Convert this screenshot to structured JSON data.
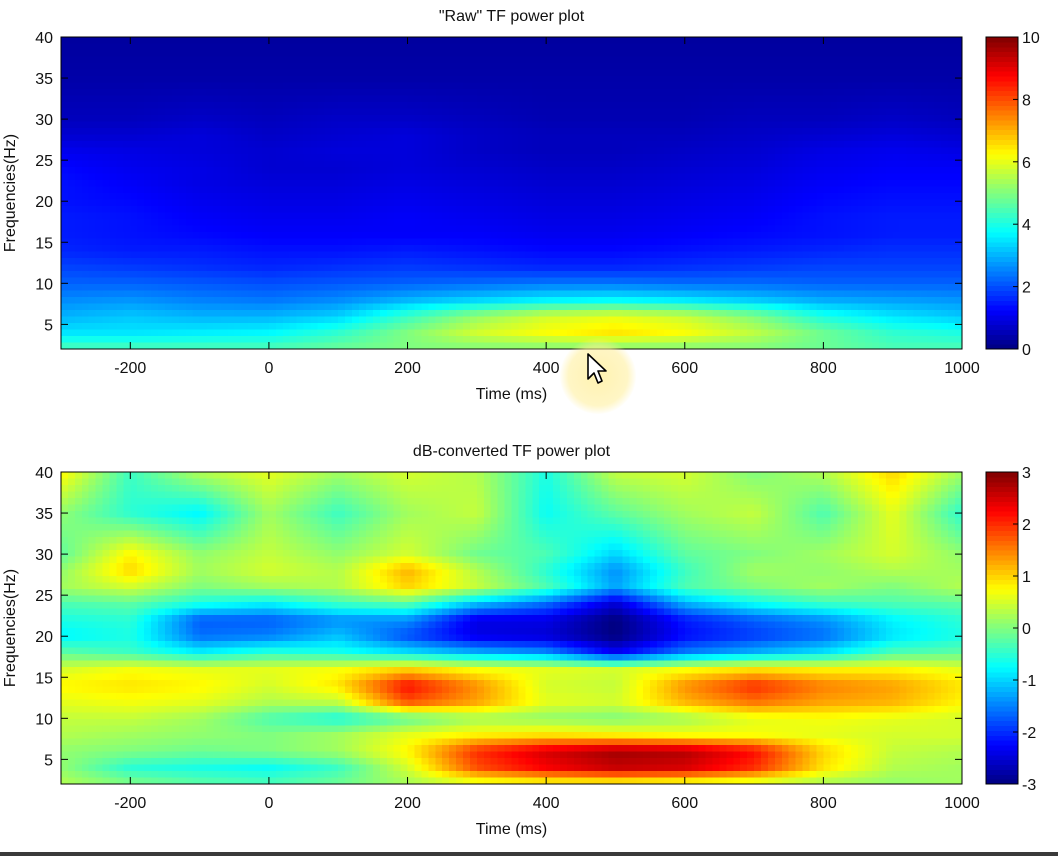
{
  "chart_data": [
    {
      "type": "heatmap",
      "title": "\"Raw\" TF power plot",
      "xlabel": "Time (ms)",
      "ylabel": "Frequencies(Hz)",
      "xlim": [
        -300,
        1000
      ],
      "ylim": [
        2,
        40
      ],
      "xticks": [
        -200,
        0,
        200,
        400,
        600,
        800,
        1000
      ],
      "yticks": [
        5,
        10,
        15,
        20,
        25,
        30,
        35,
        40
      ],
      "colorbar": {
        "min": 0,
        "max": 10,
        "ticks": [
          0,
          2,
          4,
          6,
          8,
          10
        ]
      },
      "colormap": "jet",
      "grid": false,
      "x": [
        -300,
        -200,
        -100,
        0,
        100,
        200,
        300,
        400,
        500,
        600,
        700,
        800,
        900,
        1000
      ],
      "y": [
        2,
        4,
        6,
        8,
        10,
        12,
        14,
        16,
        18,
        20,
        22,
        24,
        26,
        28,
        30,
        35,
        40
      ],
      "z": [
        [
          4.5,
          4.5,
          4.5,
          4.5,
          4.8,
          5.0,
          5.0,
          5.0,
          5.0,
          5.0,
          5.0,
          4.8,
          4.5,
          4.5
        ],
        [
          3.5,
          3.5,
          3.6,
          3.7,
          4.2,
          5.0,
          5.8,
          6.2,
          6.5,
          6.2,
          5.6,
          4.8,
          4.2,
          4.0
        ],
        [
          3.0,
          3.2,
          3.0,
          3.0,
          3.3,
          4.3,
          5.2,
          5.8,
          6.0,
          5.7,
          5.0,
          4.0,
          3.5,
          3.2
        ],
        [
          2.6,
          2.7,
          2.5,
          2.4,
          2.6,
          3.0,
          3.3,
          3.6,
          3.7,
          3.5,
          3.2,
          2.9,
          2.8,
          2.7
        ],
        [
          2.2,
          2.2,
          2.1,
          2.0,
          2.1,
          2.2,
          2.3,
          2.4,
          2.4,
          2.3,
          2.3,
          2.2,
          2.2,
          2.2
        ],
        [
          1.9,
          1.8,
          1.7,
          1.6,
          1.7,
          1.8,
          1.7,
          1.6,
          1.6,
          1.7,
          1.8,
          1.9,
          1.9,
          1.9
        ],
        [
          1.6,
          1.5,
          1.5,
          1.4,
          1.4,
          1.5,
          1.4,
          1.3,
          1.3,
          1.4,
          1.5,
          1.6,
          1.7,
          1.7
        ],
        [
          1.5,
          1.4,
          1.3,
          1.2,
          1.2,
          1.2,
          1.2,
          1.1,
          1.1,
          1.2,
          1.3,
          1.4,
          1.5,
          1.5
        ],
        [
          1.5,
          1.4,
          1.2,
          1.1,
          1.1,
          1.2,
          1.1,
          1.0,
          1.0,
          1.1,
          1.2,
          1.4,
          1.5,
          1.5
        ],
        [
          1.4,
          1.3,
          1.1,
          1.0,
          1.0,
          1.1,
          1.0,
          0.9,
          0.9,
          1.0,
          1.1,
          1.3,
          1.4,
          1.4
        ],
        [
          1.4,
          1.2,
          1.0,
          0.9,
          0.9,
          1.0,
          0.9,
          0.8,
          0.8,
          0.9,
          1.0,
          1.2,
          1.3,
          1.3
        ],
        [
          1.3,
          1.1,
          1.0,
          0.8,
          0.8,
          0.9,
          0.8,
          0.7,
          0.7,
          0.8,
          0.9,
          1.1,
          1.2,
          1.2
        ],
        [
          1.1,
          1.0,
          0.9,
          0.8,
          0.9,
          0.9,
          0.7,
          0.6,
          0.6,
          0.7,
          0.8,
          1.0,
          1.1,
          1.0
        ],
        [
          0.8,
          0.8,
          0.9,
          0.7,
          0.8,
          0.9,
          0.7,
          0.6,
          0.6,
          0.6,
          0.7,
          0.8,
          0.9,
          0.8
        ],
        [
          0.6,
          0.6,
          0.7,
          0.6,
          0.7,
          0.7,
          0.6,
          0.5,
          0.5,
          0.5,
          0.6,
          0.6,
          0.7,
          0.6
        ],
        [
          0.4,
          0.4,
          0.4,
          0.4,
          0.4,
          0.4,
          0.4,
          0.4,
          0.4,
          0.4,
          0.4,
          0.4,
          0.4,
          0.4
        ],
        [
          0.3,
          0.3,
          0.3,
          0.3,
          0.3,
          0.3,
          0.3,
          0.3,
          0.3,
          0.3,
          0.3,
          0.3,
          0.3,
          0.3
        ]
      ]
    },
    {
      "type": "heatmap",
      "title": "dB-converted TF power plot",
      "xlabel": "Time (ms)",
      "ylabel": "Frequencies(Hz)",
      "xlim": [
        -300,
        1000
      ],
      "ylim": [
        2,
        40
      ],
      "xticks": [
        -200,
        0,
        200,
        400,
        600,
        800,
        1000
      ],
      "yticks": [
        5,
        10,
        15,
        20,
        25,
        30,
        35,
        40
      ],
      "colorbar": {
        "min": -3,
        "max": 3,
        "ticks": [
          -3,
          -2,
          -1,
          0,
          1,
          2,
          3
        ]
      },
      "colormap": "jet",
      "grid": false,
      "x": [
        -300,
        -200,
        -100,
        0,
        100,
        200,
        300,
        400,
        500,
        600,
        700,
        800,
        900,
        1000
      ],
      "y": [
        2,
        4,
        6,
        8,
        10,
        12,
        14,
        16,
        18,
        20,
        22,
        24,
        26,
        28,
        30,
        35,
        40
      ],
      "z": [
        [
          0.3,
          0.0,
          -0.2,
          -0.3,
          -0.1,
          0.2,
          0.5,
          0.6,
          0.6,
          0.5,
          0.4,
          0.2,
          0.1,
          0.2
        ],
        [
          0.1,
          -0.5,
          -0.6,
          -0.7,
          -0.4,
          0.5,
          1.8,
          2.3,
          2.6,
          2.5,
          2.0,
          0.9,
          0.3,
          0.2
        ],
        [
          0.1,
          0.0,
          -0.1,
          0.0,
          0.2,
          0.8,
          2.0,
          2.5,
          2.8,
          2.7,
          2.2,
          1.0,
          0.4,
          0.3
        ],
        [
          0.3,
          0.2,
          0.1,
          0.0,
          0.2,
          0.6,
          0.8,
          0.9,
          0.8,
          0.7,
          0.7,
          0.6,
          0.5,
          0.5
        ],
        [
          0.4,
          0.4,
          0.2,
          -0.3,
          -0.6,
          -0.2,
          0.2,
          0.1,
          0.0,
          0.2,
          0.6,
          0.7,
          0.6,
          0.5
        ],
        [
          0.6,
          0.7,
          0.6,
          0.3,
          0.4,
          1.8,
          1.3,
          0.6,
          0.5,
          1.2,
          1.6,
          1.3,
          1.2,
          0.8
        ],
        [
          0.8,
          0.9,
          0.8,
          0.5,
          0.9,
          2.2,
          1.4,
          0.5,
          0.4,
          1.4,
          2.0,
          1.5,
          1.3,
          0.9
        ],
        [
          0.5,
          0.7,
          0.6,
          0.6,
          0.7,
          1.0,
          0.7,
          0.6,
          0.5,
          0.7,
          0.9,
          0.8,
          0.8,
          0.6
        ],
        [
          -0.2,
          -0.4,
          -0.8,
          -0.5,
          -0.6,
          -0.9,
          -1.2,
          -1.4,
          -2.3,
          -1.5,
          -1.2,
          -0.9,
          -0.3,
          -0.2
        ],
        [
          -0.8,
          -0.6,
          -1.6,
          -1.5,
          -1.1,
          -1.8,
          -2.4,
          -2.5,
          -3.0,
          -2.2,
          -1.9,
          -1.6,
          -0.9,
          -0.6
        ],
        [
          -0.6,
          -0.5,
          -1.7,
          -1.7,
          -1.4,
          -1.4,
          -2.4,
          -2.4,
          -3.0,
          -2.1,
          -1.7,
          -1.4,
          -0.8,
          -0.5
        ],
        [
          -0.3,
          -0.2,
          -0.6,
          -0.8,
          -0.4,
          -0.2,
          -1.1,
          -1.6,
          -2.5,
          -1.2,
          -0.7,
          -0.4,
          -0.3,
          -0.2
        ],
        [
          0.2,
          0.5,
          0.0,
          0.2,
          0.3,
          1.0,
          0.4,
          -0.3,
          -1.3,
          -0.3,
          0.0,
          0.2,
          0.0,
          0.3
        ],
        [
          0.1,
          1.0,
          0.2,
          0.5,
          0.3,
          1.2,
          0.3,
          -0.5,
          -1.4,
          -0.4,
          0.2,
          0.1,
          0.3,
          0.2
        ],
        [
          -0.2,
          0.8,
          0.1,
          0.4,
          0.1,
          0.5,
          -0.1,
          -0.3,
          -1.0,
          -0.2,
          0.0,
          0.2,
          0.5,
          0.1
        ],
        [
          0.1,
          -0.5,
          -0.8,
          0.2,
          -0.4,
          0.2,
          0.4,
          -0.7,
          -0.2,
          0.2,
          0.4,
          -0.3,
          0.6,
          -0.5
        ],
        [
          0.8,
          -0.4,
          0.3,
          0.6,
          0.2,
          0.5,
          0.3,
          -0.6,
          0.4,
          0.5,
          0.0,
          0.3,
          1.0,
          0.2
        ]
      ]
    }
  ]
}
